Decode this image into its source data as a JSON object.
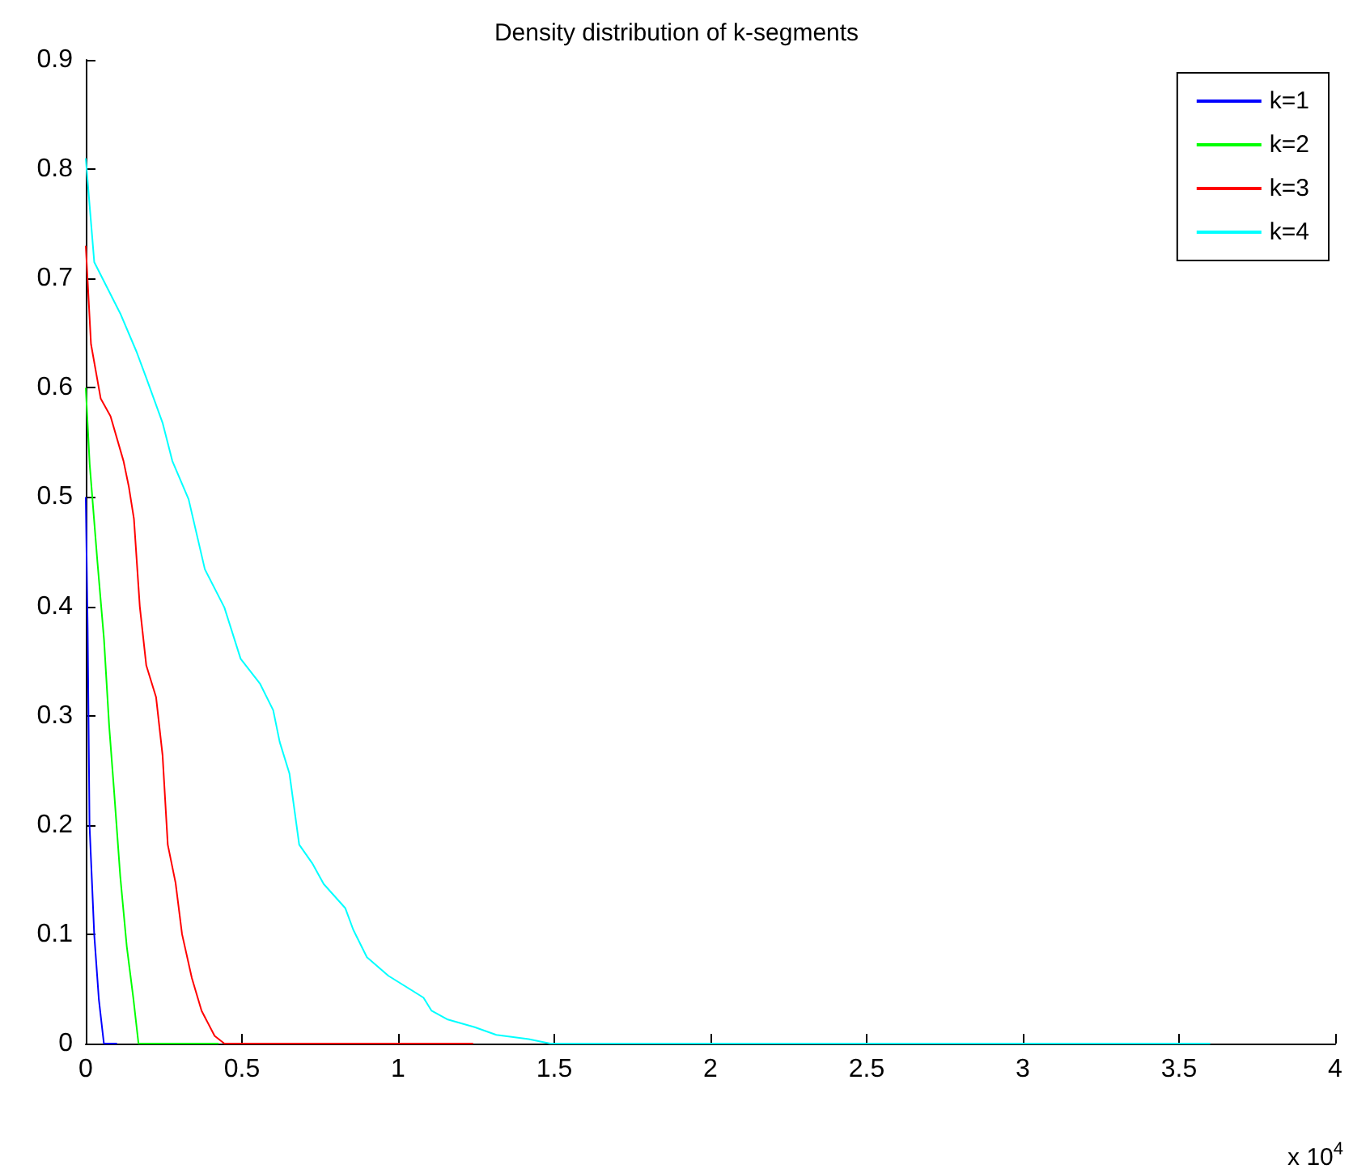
{
  "chart_data": {
    "type": "line",
    "title": "Density distribution of k-segments",
    "annotations": [
      "x 10$^{4}$"
    ],
    "series": [
      {
        "name": "k=1",
        "color": "#0000ff",
        "x": [
          0,
          0.006,
          0.012,
          0.027,
          0.042,
          0.058,
          0.1
        ],
        "values": [
          0.5,
          0.38,
          0.2,
          0.1,
          0.04,
          0,
          0
        ]
      },
      {
        "name": "k=2",
        "color": "#00ff00",
        "x": [
          0,
          0.0125,
          0.0375,
          0.0583,
          0.075,
          0.0896,
          0.1104,
          0.1312,
          0.1521,
          0.1688,
          0.425
        ],
        "values": [
          0.6,
          0.53,
          0.44,
          0.37,
          0.29,
          0.235,
          0.153,
          0.089,
          0.042,
          0,
          0
        ]
      },
      {
        "name": "k=3",
        "color": "#ff0000",
        "x": [
          0,
          0.0167,
          0.0479,
          0.0792,
          0.1208,
          0.1375,
          0.1542,
          0.1729,
          0.1937,
          0.225,
          0.2458,
          0.2625,
          0.2875,
          0.3083,
          0.3396,
          0.3708,
          0.4125,
          0.4437,
          1.24
        ],
        "values": [
          0.73,
          0.64,
          0.59,
          0.574,
          0.533,
          0.51,
          0.48,
          0.4,
          0.346,
          0.317,
          0.264,
          0.182,
          0.147,
          0.1,
          0.06,
          0.03,
          0.007,
          0,
          0
        ]
      },
      {
        "name": "k=4",
        "color": "#00ffff",
        "x": [
          0,
          0.0271,
          0.1104,
          0.1625,
          0.1937,
          0.2458,
          0.2771,
          0.3292,
          0.3812,
          0.4437,
          0.4958,
          0.5583,
          0.6,
          0.6208,
          0.6521,
          0.6833,
          0.725,
          0.7617,
          0.8306,
          0.8566,
          0.9,
          0.9689,
          1.0812,
          1.1071,
          1.1589,
          1.2453,
          1.3143,
          1.418,
          1.487,
          3.6
        ],
        "values": [
          0.81,
          0.715,
          0.668,
          0.633,
          0.609,
          0.568,
          0.533,
          0.498,
          0.434,
          0.399,
          0.352,
          0.329,
          0.305,
          0.276,
          0.247,
          0.182,
          0.165,
          0.146,
          0.124,
          0.104,
          0.079,
          0.062,
          0.042,
          0.03,
          0.022,
          0.015,
          0.008,
          0.004,
          0,
          0
        ]
      }
    ],
    "xlim": [
      0,
      4
    ],
    "xticks": [
      0,
      0.5,
      1,
      1.5,
      2,
      2.5,
      3,
      3.5,
      4
    ],
    "ylim": [
      0,
      0.9
    ],
    "yticks": [
      0,
      0.1,
      0.2,
      0.3,
      0.4,
      0.5,
      0.6,
      0.7,
      0.8,
      0.9
    ],
    "grid": false,
    "legend": "top right",
    "marker": "none",
    "line_style": "solid"
  }
}
